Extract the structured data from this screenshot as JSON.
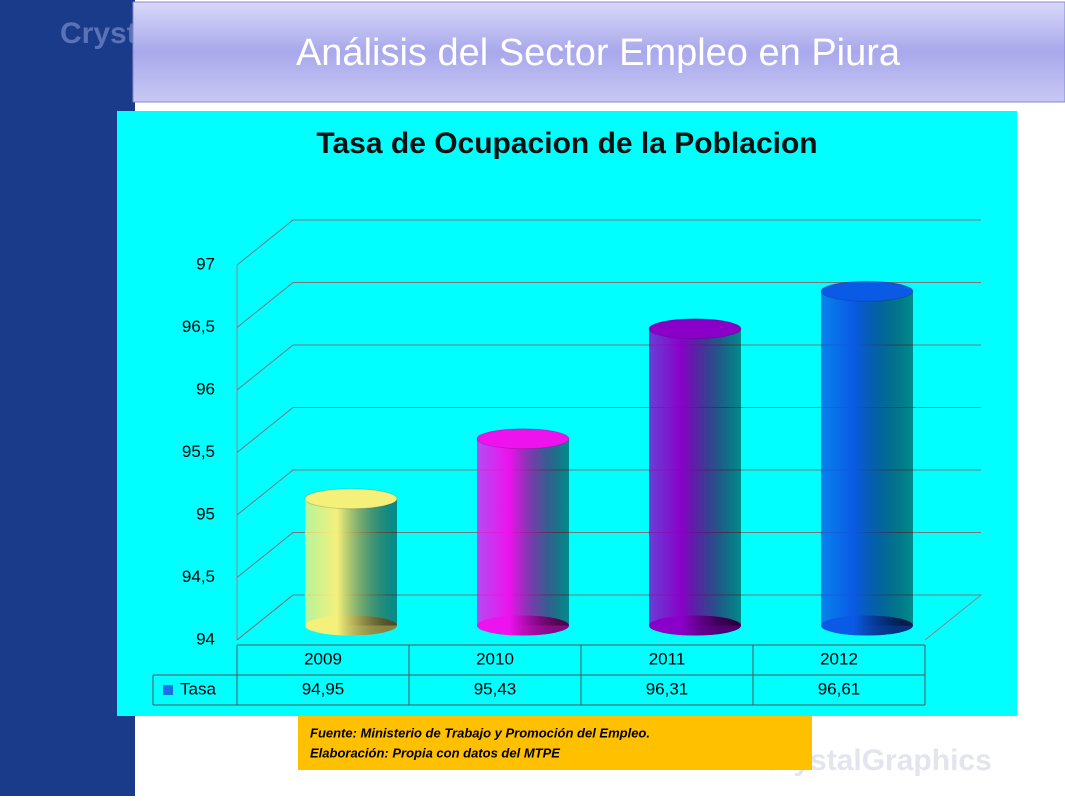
{
  "slide": {
    "title": "Análisis del Sector Empleo en Piura",
    "watermark": "CrystalGraphics"
  },
  "footnote": [
    "Fuente: Ministerio de Trabajo y Promoción del Empleo.",
    "Elaboración: Propia con datos del MTPE"
  ],
  "chart_data": {
    "type": "bar",
    "title": "Tasa de Ocupacion de la Poblacion",
    "categories": [
      "2009",
      "2010",
      "2011",
      "2012"
    ],
    "series": [
      {
        "name": "Tasa",
        "color": "#1a6ee8",
        "values": [
          94.95,
          95.43,
          96.31,
          96.61
        ],
        "value_labels": [
          "94,95",
          "95,43",
          "96,31",
          "96,61"
        ],
        "point_colors": [
          "#f4f07a",
          "#ee12ee",
          "#8a00c8",
          "#0a5ae6"
        ]
      }
    ],
    "ylim": [
      94,
      97
    ],
    "yticks": [
      94,
      {
        "value": 94.5,
        "label": "94,5"
      },
      95,
      {
        "value": 95.5,
        "label": "95,5"
      },
      96,
      {
        "value": 96.5,
        "label": "96,5"
      },
      97
    ],
    "grid": true,
    "data_table": true
  }
}
